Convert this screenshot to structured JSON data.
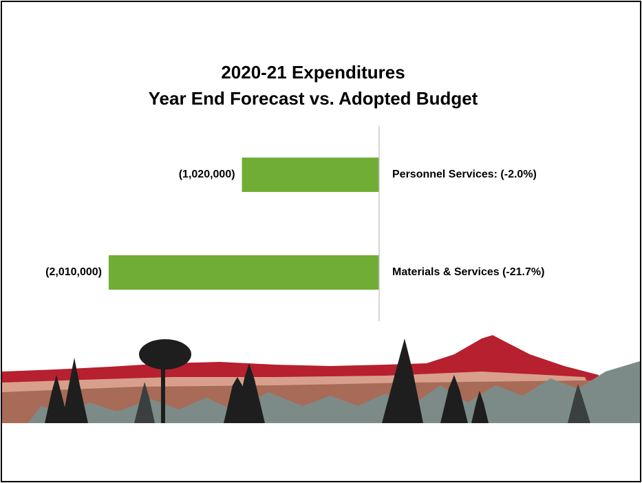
{
  "chart_data": {
    "type": "bar",
    "orientation": "horizontal",
    "title": [
      "2020-21 Expenditures",
      "Year End Forecast vs. Adopted Budget"
    ],
    "categories": [
      "Personnel Services: (-2.0%)",
      "Materials & Services (-21.7%)"
    ],
    "values": [
      -1020000,
      -2010000
    ],
    "value_labels": [
      "(1,020,000)",
      "(2,010,000)"
    ],
    "color": "#70ad35",
    "xlim": [
      -2010000,
      0
    ]
  }
}
